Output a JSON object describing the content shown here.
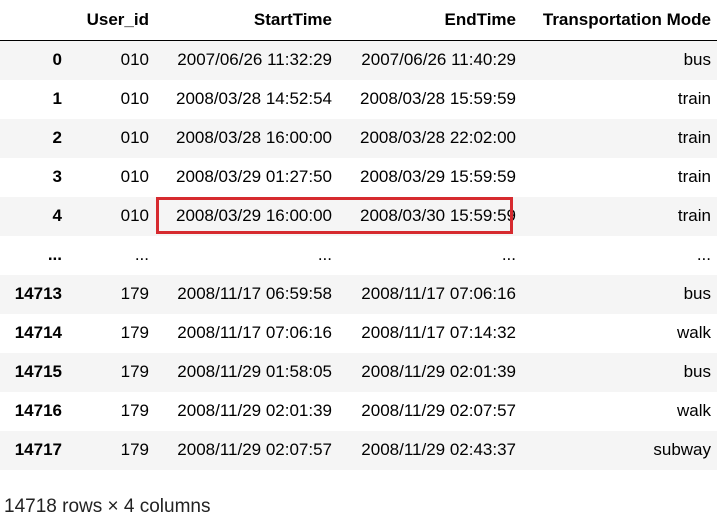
{
  "table": {
    "headers": [
      "",
      "User_id",
      "StartTime",
      "EndTime",
      "Transportation Mode"
    ],
    "rows": [
      {
        "index": "0",
        "user_id": "010",
        "start": "2007/06/26 11:32:29",
        "end": "2007/06/26 11:40:29",
        "mode": "bus"
      },
      {
        "index": "1",
        "user_id": "010",
        "start": "2008/03/28 14:52:54",
        "end": "2008/03/28 15:59:59",
        "mode": "train"
      },
      {
        "index": "2",
        "user_id": "010",
        "start": "2008/03/28 16:00:00",
        "end": "2008/03/28 22:02:00",
        "mode": "train"
      },
      {
        "index": "3",
        "user_id": "010",
        "start": "2008/03/29 01:27:50",
        "end": "2008/03/29 15:59:59",
        "mode": "train"
      },
      {
        "index": "4",
        "user_id": "010",
        "start": "2008/03/29 16:00:00",
        "end": "2008/03/30 15:59:59",
        "mode": "train"
      },
      {
        "index": "...",
        "user_id": "...",
        "start": "...",
        "end": "...",
        "mode": "..."
      },
      {
        "index": "14713",
        "user_id": "179",
        "start": "2008/11/17 06:59:58",
        "end": "2008/11/17 07:06:16",
        "mode": "bus"
      },
      {
        "index": "14714",
        "user_id": "179",
        "start": "2008/11/17 07:06:16",
        "end": "2008/11/17 07:14:32",
        "mode": "walk"
      },
      {
        "index": "14715",
        "user_id": "179",
        "start": "2008/11/29 01:58:05",
        "end": "2008/11/29 02:01:39",
        "mode": "bus"
      },
      {
        "index": "14716",
        "user_id": "179",
        "start": "2008/11/29 02:01:39",
        "end": "2008/11/29 02:07:57",
        "mode": "walk"
      },
      {
        "index": "14717",
        "user_id": "179",
        "start": "2008/11/29 02:07:57",
        "end": "2008/11/29 02:43:37",
        "mode": "subway"
      }
    ],
    "highlighted_row_index": 4
  },
  "footer": {
    "summary": "14718 rows × 4 columns"
  },
  "colors": {
    "stripe": "#f5f5f5",
    "highlight": "#d62a2f",
    "header_rule": "#000000"
  }
}
